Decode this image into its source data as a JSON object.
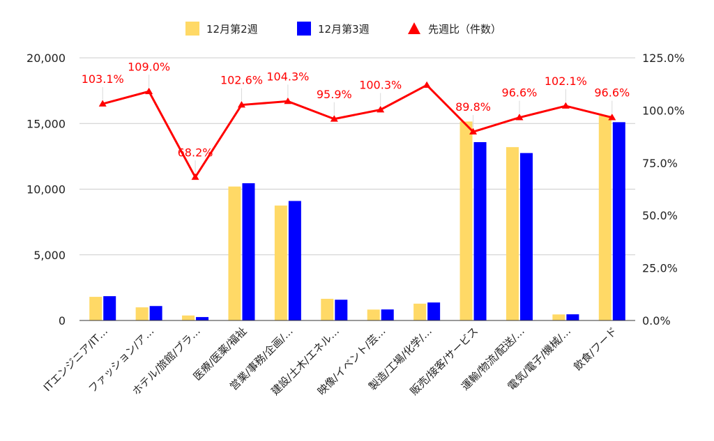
{
  "chart_data": {
    "type": "bar",
    "categories": [
      "ITエンジニア/IT…",
      "ファッション/ア…",
      "ホテル/旅館/ブラ…",
      "医療/医薬/福祉",
      "営業/事務/企画/…",
      "建設/土木/エネル…",
      "映像/イベント/芸…",
      "製造/工場/化学/…",
      "販売/接客/サービス",
      "運輸/物流/配送/…",
      "電気/電子/機械/…",
      "飲食/フード"
    ],
    "series": [
      {
        "name": "12月第2週",
        "type": "bar",
        "axis": "left",
        "color": "#FFD966",
        "values": [
          1800,
          1000,
          380,
          10200,
          8750,
          1650,
          830,
          1280,
          15150,
          13200,
          460,
          15600
        ]
      },
      {
        "name": "12月第3週",
        "type": "bar",
        "axis": "left",
        "color": "#0000FF",
        "values": [
          1850,
          1100,
          260,
          10450,
          9100,
          1580,
          840,
          1370,
          13580,
          12750,
          470,
          15100
        ]
      },
      {
        "name": "先週比（件数）",
        "type": "line",
        "axis": "right",
        "color": "#FF0000",
        "values": [
          103.1,
          109.0,
          68.2,
          102.6,
          104.3,
          95.9,
          100.3,
          112.0,
          89.8,
          96.6,
          102.1,
          96.6
        ],
        "labels": [
          "103.1%",
          "109.0%",
          "68.2%",
          "102.6%",
          "104.3%",
          "95.9%",
          "100.3%",
          "",
          "89.8%",
          "96.6%",
          "102.1%",
          "96.6%"
        ]
      }
    ],
    "y_left": {
      "min": 0,
      "max": 20000,
      "ticks": [
        0,
        5000,
        10000,
        15000,
        20000
      ],
      "tick_labels": [
        "0",
        "5,000",
        "10,000",
        "15,000",
        "20,000"
      ]
    },
    "y_right": {
      "min": 0,
      "max": 125,
      "ticks": [
        0,
        25,
        50,
        75,
        100,
        125
      ],
      "tick_labels": [
        "0.0%",
        "25.0%",
        "50.0%",
        "75.0%",
        "100.0%",
        "125.0%"
      ]
    },
    "grid": true,
    "legend_position": "top"
  }
}
